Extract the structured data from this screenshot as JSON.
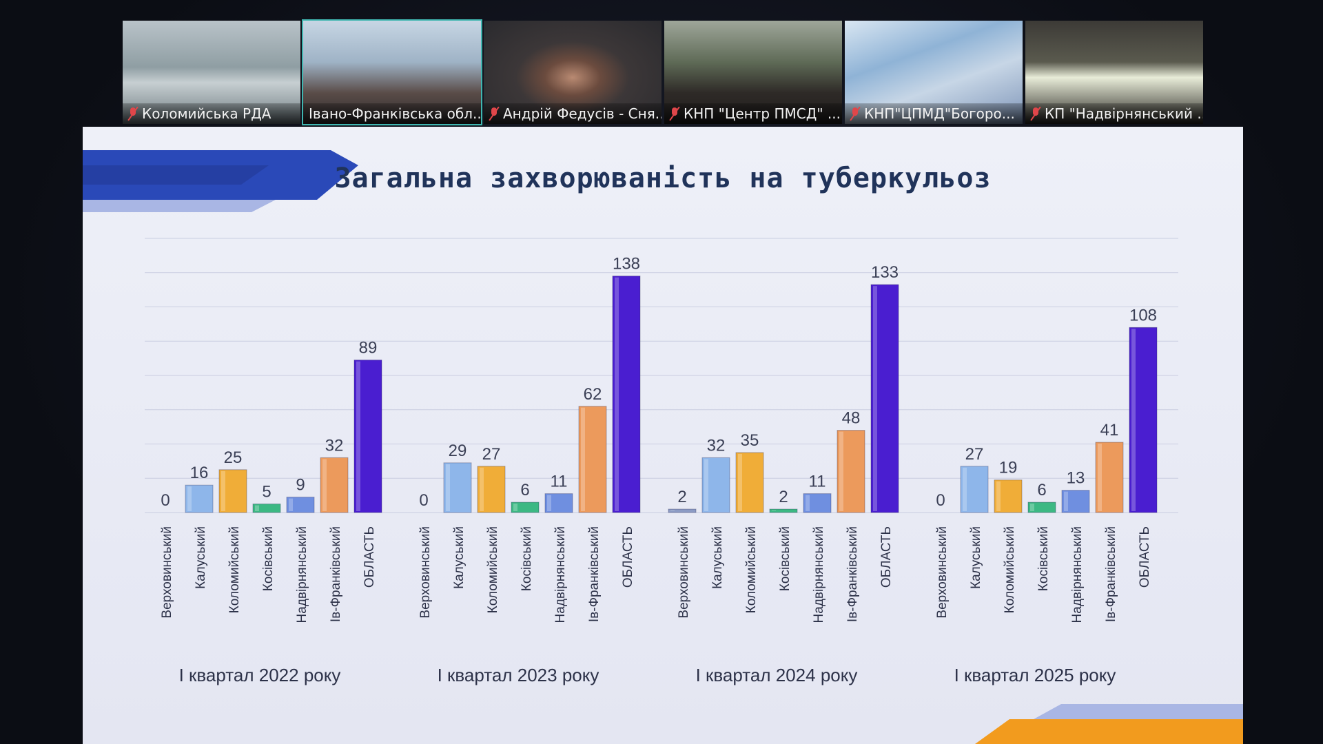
{
  "call": {
    "participants": [
      {
        "name": "Коломийська РДА",
        "muted": true,
        "active": false,
        "scene": "office"
      },
      {
        "name": "Івано-Франківська обл...",
        "muted": false,
        "active": true,
        "scene": "meeting-room"
      },
      {
        "name": "Андрій Федусів - Сня...",
        "muted": true,
        "active": false,
        "scene": "person"
      },
      {
        "name": "КНП \"Центр ПМСД\" ...",
        "muted": true,
        "active": false,
        "scene": "person-plants"
      },
      {
        "name": "КНП\"ЦПМД\"Богоро...",
        "muted": true,
        "active": false,
        "scene": "map"
      },
      {
        "name": "КП \"Надвірнянський ...",
        "muted": true,
        "active": false,
        "scene": "glare"
      }
    ]
  },
  "slide": {
    "title": "Загальна захворюваність на туберкульоз",
    "accent_colors": {
      "dark_blue": "#2a49b8",
      "light_blue": "#a9b6e4",
      "orange": "#f29b1e"
    }
  },
  "chart_data": {
    "type": "bar",
    "categories": [
      "Верховинський",
      "Калуський",
      "Коломийський",
      "Косівський",
      "Надвірнянський",
      "Ів-Франківський",
      "ОБЛАСТЬ"
    ],
    "category_colors": [
      "#8c9bc4",
      "#8eb6ea",
      "#f0ad38",
      "#3cb883",
      "#6f8fe0",
      "#ec9a5c",
      "#4a1ed0"
    ],
    "groups": [
      {
        "label": "І квартал 2022 року",
        "values": [
          0,
          16,
          25,
          5,
          9,
          32,
          89
        ]
      },
      {
        "label": "І квартал 2023 року",
        "values": [
          0,
          29,
          27,
          6,
          11,
          62,
          138
        ]
      },
      {
        "label": "І квартал 2024 року",
        "values": [
          2,
          32,
          35,
          2,
          11,
          48,
          133
        ]
      },
      {
        "label": "І квартал 2025 року",
        "values": [
          0,
          27,
          19,
          6,
          13,
          41,
          108
        ]
      }
    ],
    "ylim": [
      0,
      160
    ],
    "grid": true,
    "legend": "none"
  }
}
